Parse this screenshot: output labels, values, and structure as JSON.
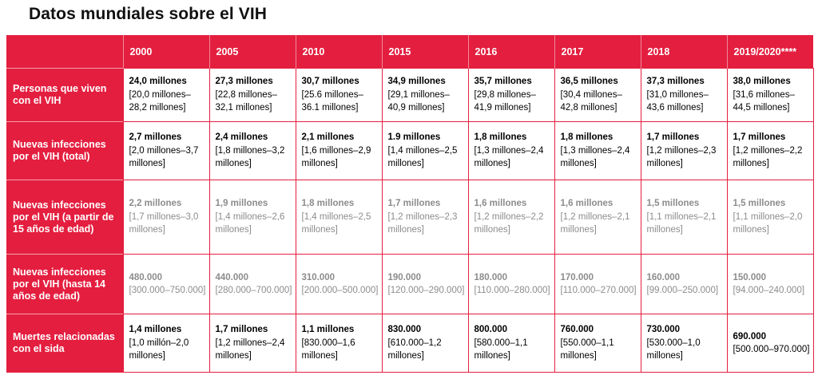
{
  "title": "Datos mundiales sobre el VIH",
  "years": [
    "2000",
    "2005",
    "2010",
    "2015",
    "2016",
    "2017",
    "2018",
    "2019/2020****"
  ],
  "rows": [
    {
      "label": "Personas que viven con el VIH",
      "cells": [
        {
          "main": "24,0 millones",
          "range": "[20,0 millones–28,2 millones]"
        },
        {
          "main": "27,3 millones",
          "range": "[22,8 millones–32,1 millones]"
        },
        {
          "main": "30,7 millones",
          "range": "[25.6 millones–36.1 millones]"
        },
        {
          "main": "34,9 millones",
          "range": "[29,1 millones–40,9 millones]"
        },
        {
          "main": "35,7 millones",
          "range": "[29,8 millones–41,9 millones]"
        },
        {
          "main": "36,5 millones",
          "range": "[30,4 millones–42,8 millones]"
        },
        {
          "main": "37,3 millones",
          "range": "[31,0 millones–43,6 millones]"
        },
        {
          "main": "38,0 millones",
          "range": "[31,6 millones–44,5 millones]"
        }
      ]
    },
    {
      "label": "Nuevas infecciones por el VIH (total)",
      "cells": [
        {
          "main": "2,7 millones",
          "range": "[2,0 millones–3,7 millones]"
        },
        {
          "main": "2,4 millones",
          "range": "[1,8 millones–3,2 millones]"
        },
        {
          "main": "2,1 millones",
          "range": "[1,6 millones–2,9 millones]"
        },
        {
          "main": "1.9 millones",
          "range": "[1,4 millones–2,5 millones]"
        },
        {
          "main": "1,8 millones",
          "range": "[1,3 millones–2,4 millones]"
        },
        {
          "main": "1,8 millones",
          "range": "[1,3 millones–2,4 millones]"
        },
        {
          "main": "1,7 millones",
          "range": "[1,2 millones–2,3 millones]"
        },
        {
          "main": "1,7 millones",
          "range": "[1,2 millones–2,2 millones]"
        }
      ]
    },
    {
      "label": "Nuevas infecciones por el VIH (a partir de 15 años de edad)",
      "cells": [
        {
          "main": "2,2 millones",
          "range": "[1,7 millones–3,0 millones]"
        },
        {
          "main": "1,9 millones",
          "range": "[1,4 millones–2,6 millones]"
        },
        {
          "main": "1,8 millones",
          "range": "[1,4 millones–2,5 millones]"
        },
        {
          "main": "1,7 millones",
          "range": "[1,2 millones–2,3 millones]"
        },
        {
          "main": "1,6 millones",
          "range": "[1,2 millones–2,2 millones]"
        },
        {
          "main": "1,6 millones",
          "range": "[1,2 millones–2,1 millones]"
        },
        {
          "main": "1,5 millones",
          "range": "[1,1 millones–2,1 millones]"
        },
        {
          "main": "1,5 millones",
          "range": "[1,1 millones–2,0 millones]"
        }
      ]
    },
    {
      "label": "Nuevas infecciones por el VIH (hasta 14 años de edad)",
      "cells": [
        {
          "main": "480.000",
          "range": "[300.000–750.000]"
        },
        {
          "main": "440.000",
          "range": "[280.000–700.000]"
        },
        {
          "main": "310.000",
          "range": "[200.000–500.000]"
        },
        {
          "main": "190.000",
          "range": "[120.000–290.000]"
        },
        {
          "main": "180.000",
          "range": "[110.000–280.000]"
        },
        {
          "main": "170.000",
          "range": "[110.000–270.000]"
        },
        {
          "main": "160.000",
          "range": "[99.000–250.000]"
        },
        {
          "main": "150.000",
          "range": "[94.000–240.000]"
        }
      ]
    },
    {
      "label": "Muertes relacionadas con el sida",
      "cells": [
        {
          "main": "1,4 millones",
          "range": "[1,0 millón–2,0 millones]"
        },
        {
          "main": "1,7 millones",
          "range": "[1,2 millones–2,4 millones]"
        },
        {
          "main": "1,1 millones",
          "range": "[830.000–1,6 millones]"
        },
        {
          "main": "830.000",
          "range": "[610.000–1,2 millones]"
        },
        {
          "main": "800.000",
          "range": "[580.000–1,1 millones]"
        },
        {
          "main": "760.000",
          "range": "[550.000–1,1 millones]"
        },
        {
          "main": "730.000",
          "range": "[530.000–1,0 millones]"
        },
        {
          "main": "690.000",
          "range": "[500.000–970.000]"
        }
      ]
    }
  ],
  "colors": {
    "header_red": "#e41e3f",
    "gray_text": "#8c8c8c"
  }
}
